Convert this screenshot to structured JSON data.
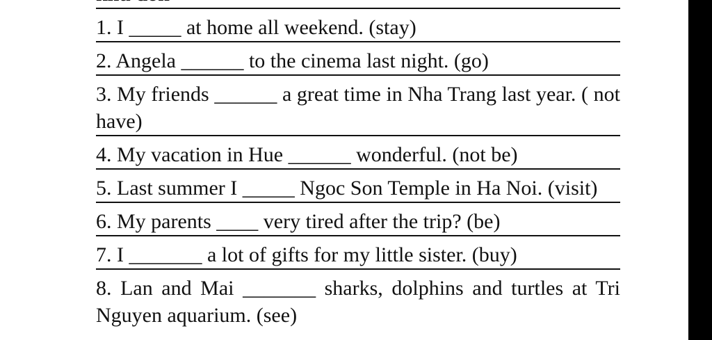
{
  "heading": "khu don",
  "items": [
    "1. I _____ at home all weekend. (stay)",
    "2. Angela ______ to the cinema last night. (go)",
    "3. My friends ______ a great time in Nha Trang last year. ( not have)",
    "4. My vacation in Hue ______ wonderful. (not be)",
    "5. Last summer I _____ Ngoc Son Temple in Ha Noi. (visit)",
    "6. My parents ____ very tired after the trip? (be)",
    "7. I _______ a lot of gifts for my little sister. (buy)",
    "8. Lan and Mai _______ sharks, dolphins and turtles at Tri Nguyen aquarium. (see)"
  ],
  "colors": {
    "text": "#111111",
    "background": "#ffffff",
    "side_bar": "#000000"
  }
}
